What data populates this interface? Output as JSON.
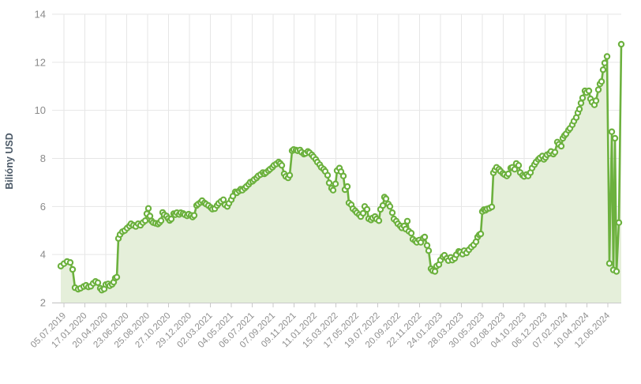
{
  "chart_data": {
    "type": "area",
    "title": "",
    "xlabel": "",
    "ylabel": "Bilióny USD",
    "ylim": [
      2,
      14
    ],
    "yticks": [
      2,
      4,
      6,
      8,
      10,
      12,
      14
    ],
    "grid": "on",
    "legend": "none",
    "marker_style": "open-circle",
    "x_tick_labels": [
      "05.07.2019",
      "17.01.2020",
      "20.04.2020",
      "23.06.2020",
      "25.08.2020",
      "27.10.2020",
      "29.12.2020",
      "02.03.2021",
      "04.05.2021",
      "06.07.2021",
      "07.09.2021",
      "09.11.2021",
      "11.01.2022",
      "15.03.2022",
      "17.05.2022",
      "19.07.2022",
      "20.09.2022",
      "22.11.2022",
      "24.01.2023",
      "28.03.2023",
      "30.05.2023",
      "02.08.2023",
      "04.10.2023",
      "06.12.2023",
      "07.02.2024",
      "10.04.2024",
      "12.06.2024"
    ],
    "unit": "USD trillions",
    "points": [
      [
        77,
        3.52
      ],
      [
        81,
        3.62
      ],
      [
        85,
        3.71
      ],
      [
        89,
        3.67
      ],
      [
        92,
        3.38
      ],
      [
        95,
        2.62
      ],
      [
        99,
        2.56
      ],
      [
        102,
        2.6
      ],
      [
        106,
        2.67
      ],
      [
        109,
        2.72
      ],
      [
        112,
        2.65
      ],
      [
        115,
        2.68
      ],
      [
        118,
        2.8
      ],
      [
        121,
        2.88
      ],
      [
        124,
        2.83
      ],
      [
        127,
        2.6
      ],
      [
        129,
        2.52
      ],
      [
        132,
        2.57
      ],
      [
        134,
        2.75
      ],
      [
        137,
        2.78
      ],
      [
        139,
        2.7
      ],
      [
        142,
        2.76
      ],
      [
        144,
        2.85
      ],
      [
        146,
        3.02
      ],
      [
        148,
        3.06
      ],
      [
        150,
        4.67
      ],
      [
        152,
        4.83
      ],
      [
        155,
        4.95
      ],
      [
        158,
        5.0
      ],
      [
        161,
        5.1
      ],
      [
        164,
        5.19
      ],
      [
        166,
        5.28
      ],
      [
        169,
        5.22
      ],
      [
        172,
        5.17
      ],
      [
        175,
        5.28
      ],
      [
        178,
        5.22
      ],
      [
        181,
        5.33
      ],
      [
        184,
        5.41
      ],
      [
        186,
        5.7
      ],
      [
        188,
        5.92
      ],
      [
        190,
        5.6
      ],
      [
        192,
        5.4
      ],
      [
        194,
        5.33
      ],
      [
        197,
        5.3
      ],
      [
        200,
        5.27
      ],
      [
        202,
        5.33
      ],
      [
        204,
        5.41
      ],
      [
        206,
        5.75
      ],
      [
        208,
        5.66
      ],
      [
        211,
        5.6
      ],
      [
        213,
        5.5
      ],
      [
        215,
        5.42
      ],
      [
        217,
        5.48
      ],
      [
        220,
        5.7
      ],
      [
        222,
        5.66
      ],
      [
        224,
        5.74
      ],
      [
        227,
        5.67
      ],
      [
        229,
        5.74
      ],
      [
        232,
        5.71
      ],
      [
        234,
        5.66
      ],
      [
        237,
        5.61
      ],
      [
        239,
        5.68
      ],
      [
        242,
        5.63
      ],
      [
        244,
        5.56
      ],
      [
        246,
        5.63
      ],
      [
        249,
        6.04
      ],
      [
        251,
        6.1
      ],
      [
        254,
        6.17
      ],
      [
        256,
        6.24
      ],
      [
        259,
        6.15
      ],
      [
        261,
        6.1
      ],
      [
        264,
        6.04
      ],
      [
        267,
        5.96
      ],
      [
        269,
        5.89
      ],
      [
        272,
        5.91
      ],
      [
        275,
        6.04
      ],
      [
        277,
        6.13
      ],
      [
        280,
        6.21
      ],
      [
        283,
        6.28
      ],
      [
        285,
        6.07
      ],
      [
        288,
        6.0
      ],
      [
        290,
        6.13
      ],
      [
        293,
        6.28
      ],
      [
        295,
        6.43
      ],
      [
        298,
        6.61
      ],
      [
        300,
        6.57
      ],
      [
        303,
        6.65
      ],
      [
        305,
        6.72
      ],
      [
        307,
        6.68
      ],
      [
        310,
        6.76
      ],
      [
        312,
        6.83
      ],
      [
        315,
        6.92
      ],
      [
        317,
        7.01
      ],
      [
        320,
        7.05
      ],
      [
        322,
        7.12
      ],
      [
        325,
        7.19
      ],
      [
        327,
        7.27
      ],
      [
        330,
        7.33
      ],
      [
        333,
        7.41
      ],
      [
        335,
        7.36
      ],
      [
        337,
        7.41
      ],
      [
        340,
        7.49
      ],
      [
        342,
        7.55
      ],
      [
        345,
        7.63
      ],
      [
        347,
        7.71
      ],
      [
        350,
        7.77
      ],
      [
        353,
        7.85
      ],
      [
        355,
        7.79
      ],
      [
        357,
        7.71
      ],
      [
        360,
        7.36
      ],
      [
        362,
        7.25
      ],
      [
        365,
        7.19
      ],
      [
        367,
        7.3
      ],
      [
        370,
        8.32
      ],
      [
        372,
        8.37
      ],
      [
        375,
        8.35
      ],
      [
        377,
        8.32
      ],
      [
        380,
        8.35
      ],
      [
        382,
        8.26
      ],
      [
        385,
        8.18
      ],
      [
        387,
        8.21
      ],
      [
        390,
        8.29
      ],
      [
        392,
        8.24
      ],
      [
        395,
        8.15
      ],
      [
        397,
        8.07
      ],
      [
        400,
        7.96
      ],
      [
        402,
        7.85
      ],
      [
        405,
        7.74
      ],
      [
        407,
        7.63
      ],
      [
        410,
        7.55
      ],
      [
        412,
        7.46
      ],
      [
        415,
        7.3
      ],
      [
        417,
        6.98
      ],
      [
        420,
        6.76
      ],
      [
        422,
        6.68
      ],
      [
        425,
        6.94
      ],
      [
        427,
        7.49
      ],
      [
        430,
        7.6
      ],
      [
        432,
        7.45
      ],
      [
        435,
        7.27
      ],
      [
        437,
        6.7
      ],
      [
        440,
        6.83
      ],
      [
        442,
        6.15
      ],
      [
        445,
        6.07
      ],
      [
        447,
        5.91
      ],
      [
        450,
        5.82
      ],
      [
        452,
        5.74
      ],
      [
        455,
        5.66
      ],
      [
        457,
        5.58
      ],
      [
        460,
        5.72
      ],
      [
        462,
        6.0
      ],
      [
        465,
        5.88
      ],
      [
        467,
        5.49
      ],
      [
        470,
        5.44
      ],
      [
        472,
        5.52
      ],
      [
        475,
        5.58
      ],
      [
        477,
        5.48
      ],
      [
        480,
        5.41
      ],
      [
        482,
        5.88
      ],
      [
        485,
        6.04
      ],
      [
        487,
        6.39
      ],
      [
        489,
        6.32
      ],
      [
        492,
        6.1
      ],
      [
        494,
        6.0
      ],
      [
        497,
        5.74
      ],
      [
        499,
        5.48
      ],
      [
        502,
        5.39
      ],
      [
        504,
        5.28
      ],
      [
        507,
        5.19
      ],
      [
        509,
        5.11
      ],
      [
        512,
        5.19
      ],
      [
        514,
        5.06
      ],
      [
        516,
        5.39
      ],
      [
        518,
        4.97
      ],
      [
        521,
        4.89
      ],
      [
        523,
        4.64
      ],
      [
        526,
        4.57
      ],
      [
        528,
        4.51
      ],
      [
        531,
        4.6
      ],
      [
        533,
        4.51
      ],
      [
        536,
        4.68
      ],
      [
        538,
        4.73
      ],
      [
        541,
        4.38
      ],
      [
        543,
        4.16
      ],
      [
        546,
        3.41
      ],
      [
        548,
        3.33
      ],
      [
        551,
        3.3
      ],
      [
        553,
        3.52
      ],
      [
        556,
        3.58
      ],
      [
        558,
        3.77
      ],
      [
        561,
        3.91
      ],
      [
        563,
        3.97
      ],
      [
        566,
        3.84
      ],
      [
        568,
        3.75
      ],
      [
        571,
        3.88
      ],
      [
        573,
        3.77
      ],
      [
        576,
        3.84
      ],
      [
        578,
        3.99
      ],
      [
        581,
        4.13
      ],
      [
        583,
        4.1
      ],
      [
        586,
        4.02
      ],
      [
        588,
        4.16
      ],
      [
        591,
        4.07
      ],
      [
        594,
        4.2
      ],
      [
        597,
        4.31
      ],
      [
        600,
        4.4
      ],
      [
        603,
        4.53
      ],
      [
        605,
        4.73
      ],
      [
        607,
        4.82
      ],
      [
        609,
        4.86
      ],
      [
        611,
        5.79
      ],
      [
        613,
        5.87
      ],
      [
        615,
        5.84
      ],
      [
        617,
        5.9
      ],
      [
        620,
        5.93
      ],
      [
        623,
        5.98
      ],
      [
        625,
        7.4
      ],
      [
        627,
        7.52
      ],
      [
        629,
        7.63
      ],
      [
        632,
        7.55
      ],
      [
        634,
        7.47
      ],
      [
        637,
        7.38
      ],
      [
        639,
        7.33
      ],
      [
        642,
        7.27
      ],
      [
        644,
        7.36
      ],
      [
        647,
        7.6
      ],
      [
        649,
        7.63
      ],
      [
        652,
        7.55
      ],
      [
        654,
        7.79
      ],
      [
        657,
        7.71
      ],
      [
        659,
        7.41
      ],
      [
        662,
        7.3
      ],
      [
        664,
        7.25
      ],
      [
        667,
        7.33
      ],
      [
        669,
        7.27
      ],
      [
        672,
        7.41
      ],
      [
        674,
        7.6
      ],
      [
        677,
        7.74
      ],
      [
        679,
        7.85
      ],
      [
        682,
        7.96
      ],
      [
        684,
        8.02
      ],
      [
        687,
        8.1
      ],
      [
        689,
        7.96
      ],
      [
        691,
        8.04
      ],
      [
        693,
        8.15
      ],
      [
        696,
        8.21
      ],
      [
        698,
        8.29
      ],
      [
        701,
        8.18
      ],
      [
        703,
        8.26
      ],
      [
        706,
        8.68
      ],
      [
        708,
        8.59
      ],
      [
        711,
        8.51
      ],
      [
        713,
        8.84
      ],
      [
        715,
        8.95
      ],
      [
        717,
        9.02
      ],
      [
        720,
        9.17
      ],
      [
        722,
        9.25
      ],
      [
        725,
        9.4
      ],
      [
        727,
        9.55
      ],
      [
        730,
        9.7
      ],
      [
        732,
        9.9
      ],
      [
        734,
        10.05
      ],
      [
        736,
        10.3
      ],
      [
        738,
        10.52
      ],
      [
        741,
        10.81
      ],
      [
        743,
        10.74
      ],
      [
        746,
        10.81
      ],
      [
        748,
        10.48
      ],
      [
        750,
        10.34
      ],
      [
        753,
        10.23
      ],
      [
        755,
        10.4
      ],
      [
        758,
        10.86
      ],
      [
        760,
        11.1
      ],
      [
        762,
        11.2
      ],
      [
        764,
        11.69
      ],
      [
        766,
        11.97
      ],
      [
        769,
        12.24
      ],
      [
        772,
        3.63
      ],
      [
        775,
        9.11
      ],
      [
        777,
        3.36
      ],
      [
        779,
        8.84
      ],
      [
        781,
        3.3
      ],
      [
        784,
        5.33
      ],
      [
        787,
        12.75
      ]
    ],
    "colors": {
      "line": "#6cb13e",
      "marker_fill": "#ffffff",
      "area_fill": "#e5efda",
      "gridline": "#e6e6e6",
      "axis_line": "#c9c9c9",
      "tick_label": "#8a8a8a",
      "axis_title": "#4a5866"
    }
  }
}
